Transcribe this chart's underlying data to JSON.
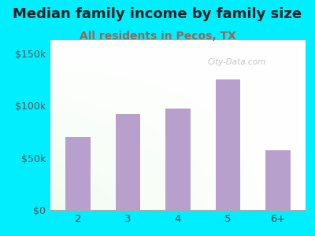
{
  "title": "Median family income by family size",
  "subtitle": "All residents in Pecos, TX",
  "categories": [
    "2",
    "3",
    "4",
    "5",
    "6+"
  ],
  "values": [
    70000,
    92000,
    97000,
    125000,
    57000
  ],
  "bar_color": "#b8a0cc",
  "title_fontsize": 13,
  "subtitle_fontsize": 10,
  "subtitle_color": "#996655",
  "title_color": "#222222",
  "background_outer": "#00eeff",
  "ylim": [
    0,
    162500
  ],
  "yticks": [
    0,
    50000,
    100000,
    150000
  ],
  "ytick_labels": [
    "$0",
    "$50k",
    "$100k",
    "$150k"
  ],
  "watermark": "City-Data.com"
}
